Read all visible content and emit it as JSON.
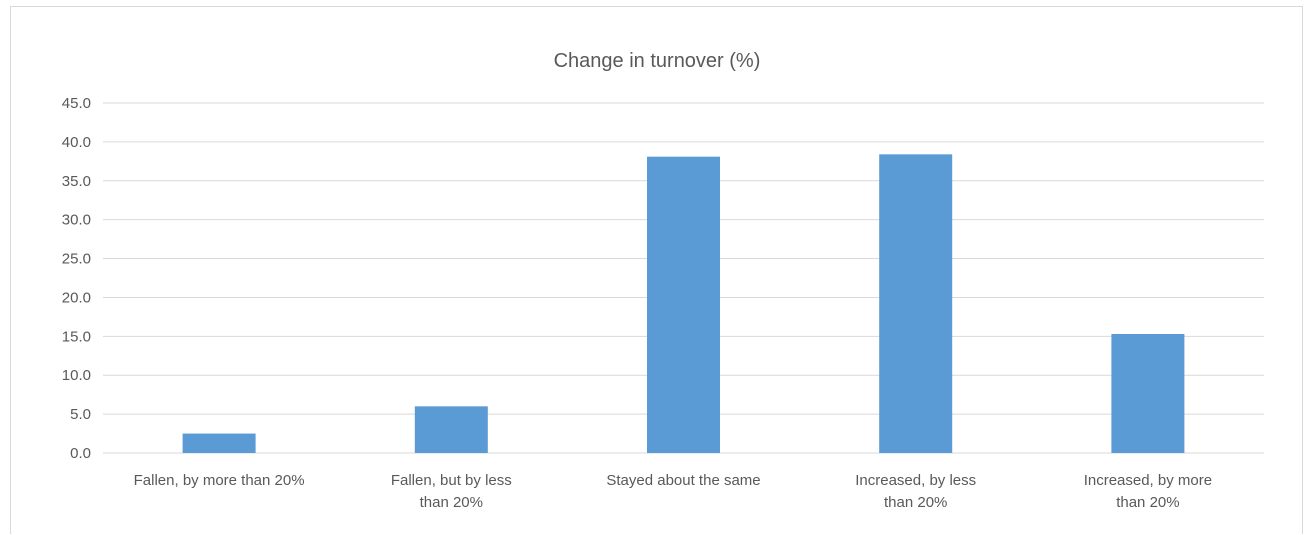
{
  "chart_data": {
    "type": "bar",
    "title": "Change in turnover (%)",
    "xlabel": "",
    "ylabel": "",
    "categories": [
      "Fallen, by more than 20%",
      "Fallen, but by less than 20%",
      "Stayed about the same",
      "Increased, by less than 20%",
      "Increased, by more than 20%"
    ],
    "category_lines": [
      [
        "Fallen, by more than 20%"
      ],
      [
        "Fallen, but by less",
        "than 20%"
      ],
      [
        "Stayed about the same"
      ],
      [
        "Increased, by less",
        "than 20%"
      ],
      [
        "Increased, by more",
        "than 20%"
      ]
    ],
    "values": [
      2.5,
      6.0,
      38.1,
      38.4,
      15.3
    ],
    "ylim": [
      0,
      45
    ],
    "yticks": [
      "0.0",
      "5.0",
      "10.0",
      "15.0",
      "20.0",
      "25.0",
      "30.0",
      "35.0",
      "40.0",
      "45.0"
    ],
    "grid": true,
    "legend": "none",
    "bar_color": "#5b9bd5"
  }
}
